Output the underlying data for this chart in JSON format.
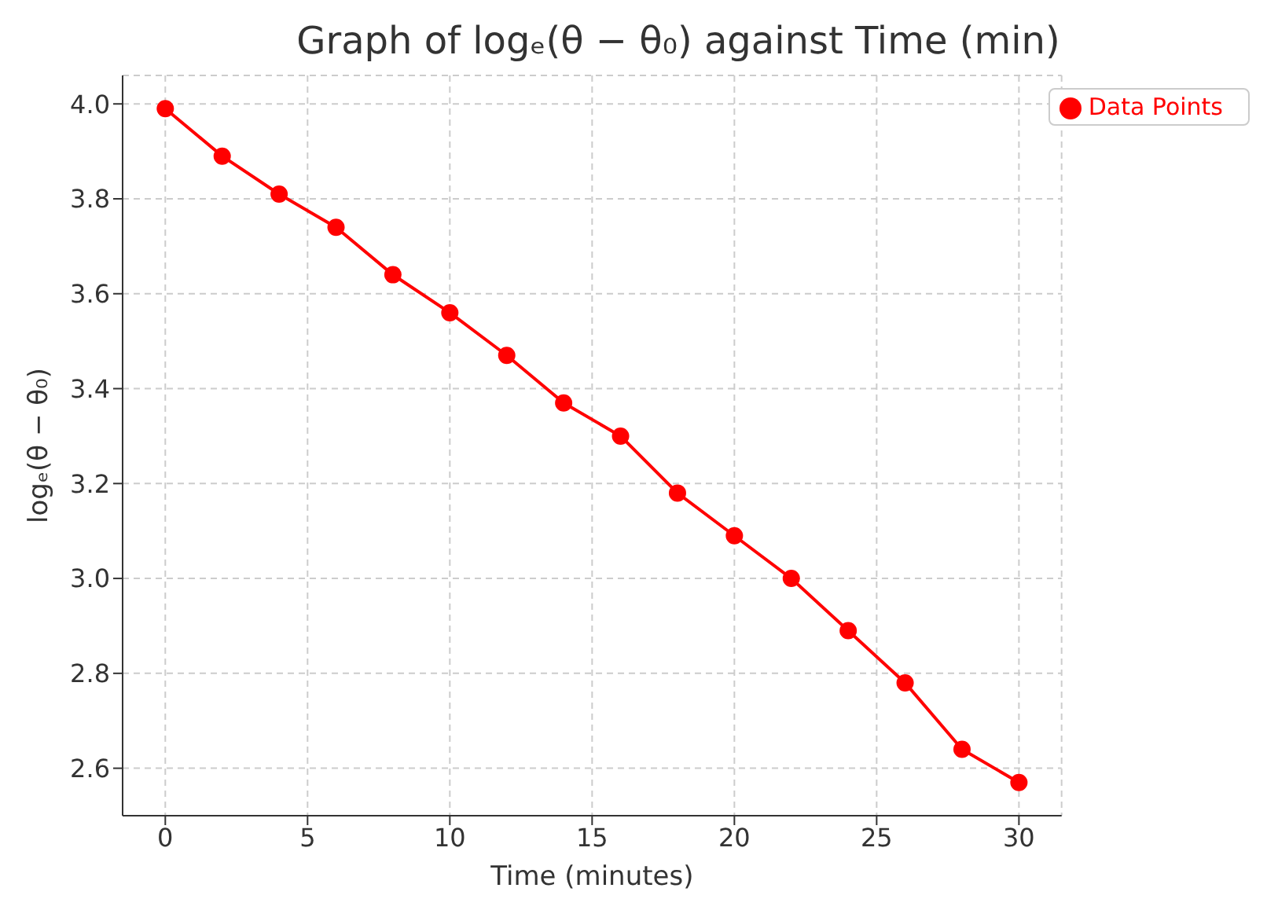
{
  "chart_data": {
    "type": "line",
    "title": "Graph of logₑ(θ − θ₀) against Time (min)",
    "xlabel": "Time (minutes)",
    "ylabel": "logₑ(θ − θ₀)",
    "x": [
      0,
      2,
      4,
      6,
      8,
      10,
      12,
      14,
      16,
      18,
      20,
      22,
      24,
      26,
      28,
      30
    ],
    "series": [
      {
        "name": "Data Points",
        "color": "#ff0000",
        "values": [
          3.99,
          3.89,
          3.81,
          3.74,
          3.64,
          3.56,
          3.47,
          3.37,
          3.3,
          3.18,
          3.09,
          3.0,
          2.89,
          2.78,
          2.64,
          2.57
        ]
      }
    ],
    "xlim": [
      -1.5,
      31.5
    ],
    "xticks": [
      0,
      5,
      10,
      15,
      20,
      25,
      30
    ],
    "ylim": [
      2.5,
      4.06
    ],
    "yticks": [
      {
        "value": 2.6,
        "label": "2.6"
      },
      {
        "value": 2.8,
        "label": "2.8"
      },
      {
        "value": 3.0,
        "label": "3.0"
      },
      {
        "value": 3.2,
        "label": "3.2"
      },
      {
        "value": 3.4,
        "label": "3.4"
      },
      {
        "value": 3.6,
        "label": "3.6"
      },
      {
        "value": 3.8,
        "label": "3.8"
      },
      {
        "value": 4.0,
        "label": "4.0"
      }
    ],
    "grid": true,
    "legend": "top right",
    "marker": "circle",
    "line_style": "solid"
  }
}
